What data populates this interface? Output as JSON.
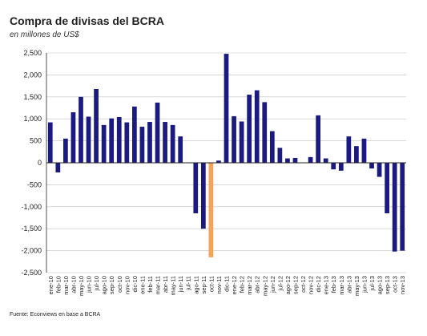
{
  "title": "Compra de divisas del BCRA",
  "subtitle": "en millones de US$",
  "source": "Fuente: Econviews en base a BCRA",
  "colors": {
    "bar": "#1a1a80",
    "highlight": "#f4a35a",
    "grid": "#bfbfbf",
    "axis": "#222222"
  },
  "chart_data": {
    "type": "bar",
    "title": "Compra de divisas del BCRA",
    "subtitle": "en millones de US$",
    "ylim": [
      -2500,
      2500
    ],
    "yticks": [
      -2500,
      -2000,
      -1500,
      -1000,
      -500,
      0,
      500,
      1000,
      1500,
      2000,
      2500
    ],
    "ytick_labels": [
      "-2,500",
      "-2,000",
      "-1,500",
      "-1,000",
      "-500",
      "0",
      "500",
      "1,000",
      "1,500",
      "2,000",
      "2,500"
    ],
    "grid": "horizontal",
    "categories": [
      "ene-10",
      "feb-10",
      "mar-10",
      "abr-10",
      "may-10",
      "jun-10",
      "jul-10",
      "ago-10",
      "sep-10",
      "oct-10",
      "nov-10",
      "dic-10",
      "ene-11",
      "feb-11",
      "mar-11",
      "abr-11",
      "may-11",
      "jun-11",
      "jul-11",
      "ago-11",
      "sep-11",
      "oct-11",
      "nov-11",
      "dic-11",
      "ene-12",
      "feb-12",
      "mar-12",
      "abr-12",
      "may-12",
      "jun-12",
      "jul-12",
      "ago-12",
      "sep-12",
      "oct-12",
      "nov-12",
      "dic-12",
      "ene-13",
      "feb-13",
      "mar-13",
      "abr-13",
      "may-13",
      "jun-13",
      "jul-13",
      "ago-13",
      "sep-13",
      "oct-13",
      "nov-13"
    ],
    "values": [
      920,
      -220,
      550,
      1150,
      1500,
      1050,
      1680,
      860,
      1010,
      1040,
      920,
      1280,
      820,
      930,
      1370,
      930,
      860,
      600,
      0,
      -1150,
      -1500,
      -2150,
      50,
      2480,
      1060,
      940,
      1550,
      1650,
      1380,
      720,
      340,
      100,
      110,
      0,
      130,
      1080,
      100,
      -150,
      -180,
      600,
      380,
      550,
      -130,
      -320,
      -1150,
      -2020,
      -2000
    ],
    "highlight_index": 21
  }
}
